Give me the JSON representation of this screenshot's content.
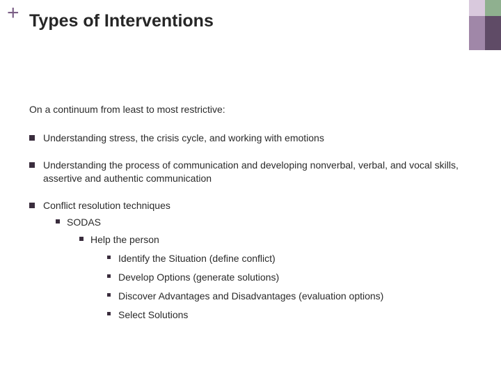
{
  "accent": {
    "plus_color": "#7b5f86",
    "corner": {
      "top_left": "#d9c9dd",
      "top_right": "#8fb08f",
      "bottom_left": "#a087a8",
      "bottom_right": "#5f4b66"
    }
  },
  "title": "Types of Interventions",
  "intro": "On a continuum from least to most restrictive:",
  "bullets": {
    "b1": "Understanding stress, the crisis cycle, and working with emotions",
    "b2": "Understanding the process of communication and developing nonverbal, verbal, and vocal skills, assertive and authentic communication",
    "b3": "Conflict resolution techniques",
    "b3_sub1": "SODAS",
    "b3_sub1_sub1": "Help the person",
    "sodas": {
      "s1": "Identify the Situation (define conflict)",
      "s2": "Develop Options (generate solutions)",
      "s3": "Discover Advantages and Disadvantages (evaluation options)",
      "s4": "Select Solutions"
    }
  }
}
